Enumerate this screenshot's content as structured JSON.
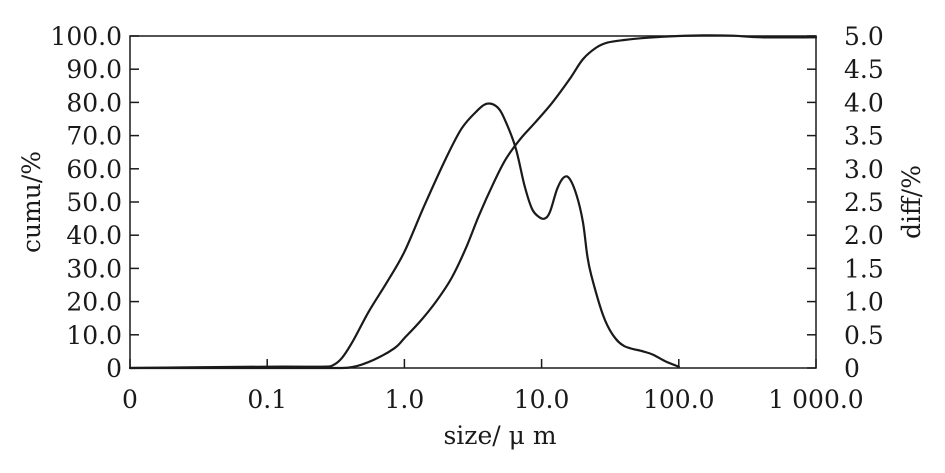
{
  "chart_data": {
    "type": "line",
    "title": "",
    "xlabel": "size/ μ m",
    "ylabel_left": "cumu/%",
    "ylabel_right": "diff/%",
    "x_scale": "log",
    "x_ticks": [
      {
        "value": 0.01,
        "label": "0"
      },
      {
        "value": 0.1,
        "label": "0.1"
      },
      {
        "value": 1,
        "label": "1.0"
      },
      {
        "value": 10,
        "label": "10.0"
      },
      {
        "value": 100,
        "label": "100.0"
      },
      {
        "value": 1000,
        "label": "1 000.0"
      }
    ],
    "y_left_ticks": [
      {
        "value": 0,
        "label": "0"
      },
      {
        "value": 10,
        "label": "10.0"
      },
      {
        "value": 20,
        "label": "20.0"
      },
      {
        "value": 30,
        "label": "30.0"
      },
      {
        "value": 40,
        "label": "40.0"
      },
      {
        "value": 50,
        "label": "50.0"
      },
      {
        "value": 60,
        "label": "60.0"
      },
      {
        "value": 70,
        "label": "70.0"
      },
      {
        "value": 80,
        "label": "80.0"
      },
      {
        "value": 90,
        "label": "90.0"
      },
      {
        "value": 100,
        "label": "100.0"
      }
    ],
    "y_right_ticks": [
      {
        "value": 0,
        "label": "0"
      },
      {
        "value": 0.5,
        "label": "0.5"
      },
      {
        "value": 1.0,
        "label": "1.0"
      },
      {
        "value": 1.5,
        "label": "1.5"
      },
      {
        "value": 2.0,
        "label": "2.0"
      },
      {
        "value": 2.5,
        "label": "2.5"
      },
      {
        "value": 3.0,
        "label": "3.0"
      },
      {
        "value": 3.5,
        "label": "3.5"
      },
      {
        "value": 4.0,
        "label": "4.0"
      },
      {
        "value": 4.5,
        "label": "4.5"
      },
      {
        "value": 5.0,
        "label": "5.0"
      }
    ],
    "xlim": [
      0.01,
      1000
    ],
    "ylim_left": [
      0,
      100
    ],
    "ylim_right": [
      0,
      5
    ],
    "grid": false,
    "series": [
      {
        "name": "cumu",
        "axis": "left",
        "x": [
          0.01,
          0.1,
          0.3,
          0.42,
          0.6,
          0.85,
          1.0,
          1.3,
          1.7,
          2.2,
          2.8,
          3.5,
          4.5,
          5.5,
          7.0,
          9.0,
          12.0,
          16.0,
          20.0,
          25.0,
          30.0,
          40.0,
          60.0,
          100.0,
          150.0,
          250.0,
          400.0,
          1000.0
        ],
        "values": [
          0,
          0,
          0,
          0.3,
          2.5,
          6,
          9,
          14,
          20,
          27,
          36,
          46,
          56,
          63,
          69,
          74,
          80,
          87,
          93,
          96.5,
          98,
          98.8,
          99.5,
          100,
          100.2,
          100.1,
          99.6,
          99.6
        ]
      },
      {
        "name": "diff",
        "axis": "right",
        "x": [
          0.01,
          0.1,
          0.25,
          0.3,
          0.35,
          0.42,
          0.55,
          0.75,
          1.0,
          1.4,
          2.0,
          2.6,
          3.3,
          4.0,
          4.8,
          5.5,
          6.5,
          7.5,
          8.5,
          9.5,
          10.5,
          11.5,
          13.0,
          14.5,
          16.0,
          18.0,
          20.0,
          21.5,
          23.0,
          28.0,
          33.0,
          40.0,
          55.0,
          65.0,
          80.0,
          100.0
        ],
        "values": [
          0,
          0.02,
          0.02,
          0.04,
          0.15,
          0.4,
          0.85,
          1.3,
          1.75,
          2.45,
          3.15,
          3.6,
          3.85,
          3.98,
          3.92,
          3.7,
          3.3,
          2.75,
          2.4,
          2.28,
          2.25,
          2.35,
          2.7,
          2.87,
          2.85,
          2.6,
          2.2,
          1.7,
          1.4,
          0.8,
          0.5,
          0.33,
          0.25,
          0.2,
          0.1,
          0.02
        ]
      }
    ]
  }
}
